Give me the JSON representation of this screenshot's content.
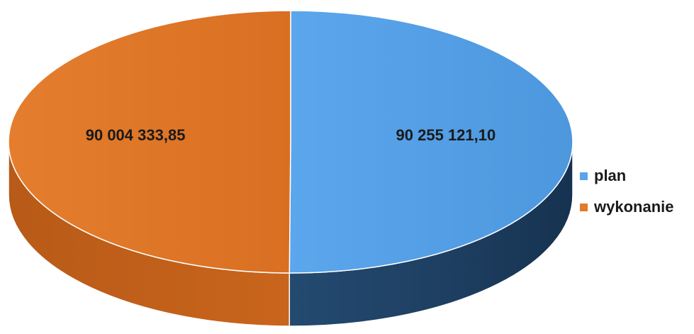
{
  "chart_data": {
    "type": "pie",
    "style": "3d",
    "categories": [
      "plan",
      "wykonanie"
    ],
    "values": [
      90255121.1,
      90004333.85
    ],
    "labels": [
      "90 255 121,10",
      "90 004 333,85"
    ],
    "colors": [
      "#5aa5ea",
      "#e07a2c"
    ],
    "legend": "right"
  }
}
